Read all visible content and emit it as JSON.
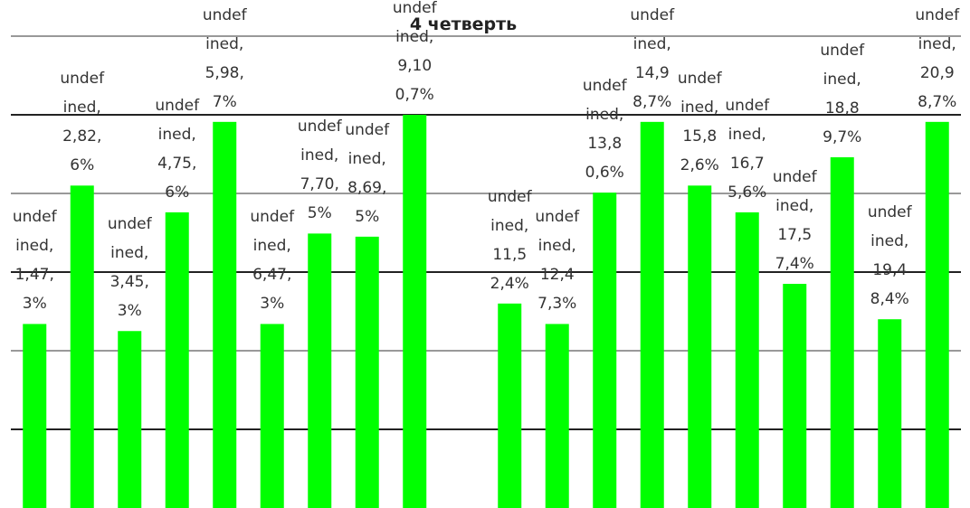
{
  "chart_data": {
    "type": "bar",
    "title": "4 четверть",
    "values": [
      2.34,
      4.1,
      2.25,
      3.76,
      4.91,
      2.34,
      3.49,
      3.45,
      5.0,
      null,
      2.6,
      2.34,
      4.01,
      4.91,
      4.1,
      3.76,
      2.85,
      4.46,
      2.4,
      4.91
    ],
    "data_labels": [
      "undefined,1,47,3%",
      "undefined,2,82,6%",
      "undefined,3,45,3%",
      "undefined,4,75,6%",
      "undefined,5,98,7%",
      "undefined,6,47,3%",
      "undefined,7,70,5%",
      "undefined,8,69,5%",
      "undefined,9,100,7%",
      null,
      "undefined,11,52,4%",
      "undefined,12,47,3%",
      "undefined,13,80,6%",
      "undefined,14,98,7%",
      "undefined,15,82,6%",
      "undefined,16,75,6%",
      "undefined,17,57,4%",
      "undefined,18,89,7%",
      "undefined,19,48,4%",
      "undefined,20,98,7%"
    ],
    "color": "#00ff00",
    "ylim": [
      0,
      6
    ],
    "yticks": [
      1,
      2,
      3,
      4,
      5,
      6
    ],
    "grid": true
  }
}
